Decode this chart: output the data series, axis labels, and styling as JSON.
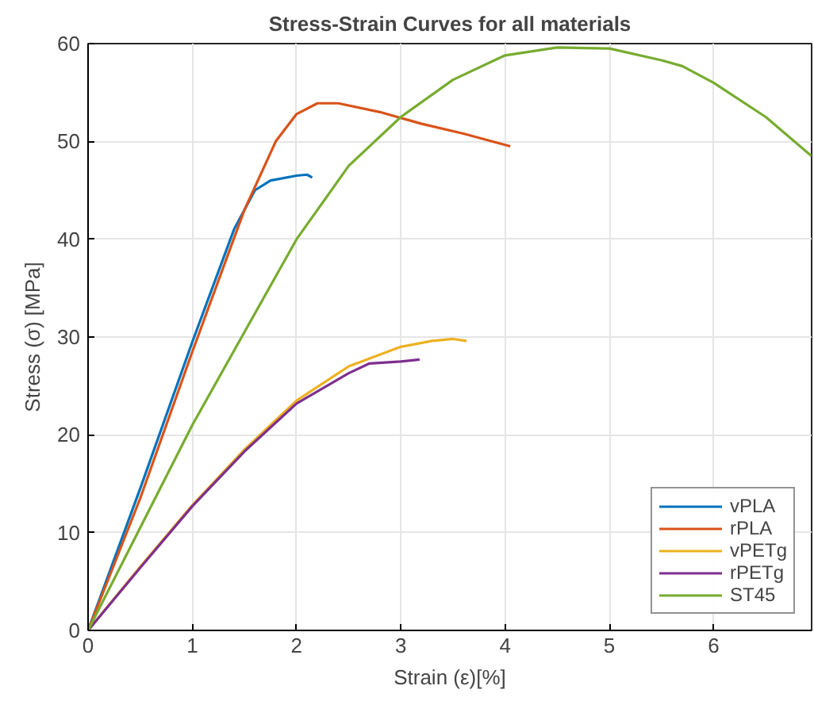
{
  "chart_data": {
    "type": "line",
    "title": "Stress-Strain Curves for all materials",
    "xlabel": "Strain (ε)[%]",
    "ylabel": "Stress (σ) [MPa]",
    "xlim": [
      0,
      6.94
    ],
    "ylim": [
      0,
      60
    ],
    "xticks": [
      0,
      1,
      2,
      3,
      4,
      5,
      6
    ],
    "yticks": [
      0,
      10,
      20,
      30,
      40,
      50,
      60
    ],
    "grid": true,
    "legend": "bottom right",
    "line_style": "solid",
    "marker": "none",
    "series": [
      {
        "name": "vPLA",
        "color": "#0072bd",
        "x": [
          0,
          0.5,
          1,
          1.4,
          1.6,
          1.75,
          2,
          2.1,
          2.15
        ],
        "values": [
          0,
          14.5,
          29.5,
          41,
          45,
          46,
          46.5,
          46.6,
          46.3
        ]
      },
      {
        "name": "rPLA",
        "color": "#d95319",
        "x": [
          0,
          0.5,
          1,
          1.5,
          1.8,
          2,
          2.2,
          2.4,
          2.8,
          3.2,
          3.6,
          4.05
        ],
        "values": [
          0,
          13.5,
          28.5,
          43,
          50,
          52.8,
          53.9,
          53.9,
          53,
          51.8,
          50.8,
          49.5
        ]
      },
      {
        "name": "vPETg",
        "color": "#edb120",
        "x": [
          0,
          0.5,
          1,
          1.5,
          2,
          2.5,
          3,
          3.3,
          3.5,
          3.63
        ],
        "values": [
          0,
          6.5,
          12.8,
          18.5,
          23.5,
          27,
          29,
          29.6,
          29.8,
          29.6
        ]
      },
      {
        "name": "rPETg",
        "color": "#7e2f8e",
        "x": [
          0,
          0.5,
          1,
          1.5,
          2,
          2.5,
          2.7,
          3,
          3.18
        ],
        "values": [
          0,
          6.4,
          12.7,
          18.3,
          23.2,
          26.3,
          27.3,
          27.5,
          27.7
        ]
      },
      {
        "name": "ST45",
        "color": "#77ac30",
        "x": [
          0,
          0.5,
          1,
          1.5,
          2,
          2.5,
          3,
          3.5,
          4,
          4.5,
          5,
          5.5,
          5.7,
          6,
          6.5,
          6.94
        ],
        "values": [
          0,
          10.5,
          21,
          30.5,
          40,
          47.5,
          52.5,
          56.3,
          58.8,
          59.6,
          59.5,
          58.3,
          57.7,
          56,
          52.5,
          48.5
        ]
      }
    ]
  }
}
